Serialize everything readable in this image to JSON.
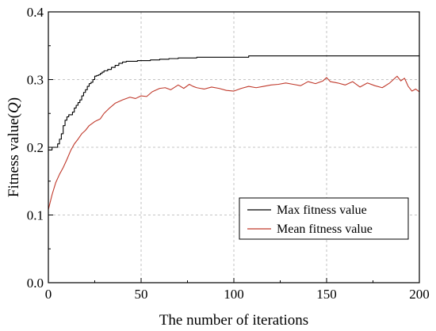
{
  "chart_data": {
    "type": "line",
    "xlabel": "The number of iterations",
    "ylabel_prefix": "Fitness value(",
    "ylabel_var": "Q",
    "ylabel_suffix": ")",
    "xlim": [
      0,
      200
    ],
    "ylim": [
      0.0,
      0.4
    ],
    "x_ticks": [
      0,
      50,
      100,
      150,
      200
    ],
    "x_tick_labels": [
      "0",
      "50",
      "100",
      "150",
      "200"
    ],
    "y_ticks": [
      0.0,
      0.1,
      0.2,
      0.3,
      0.4
    ],
    "y_tick_labels": [
      "0.0",
      "0.1",
      "0.2",
      "0.3",
      "0.4"
    ],
    "grid": true,
    "legend_position": "lower-right",
    "series": [
      {
        "name": "Max fitness value",
        "color": "#000000",
        "x": [
          0,
          1,
          2,
          3,
          4,
          5,
          6,
          7,
          8,
          9,
          10,
          11,
          12,
          13,
          14,
          15,
          16,
          17,
          18,
          19,
          20,
          21,
          22,
          23,
          24,
          25,
          26,
          27,
          28,
          29,
          30,
          32,
          34,
          36,
          38,
          40,
          42,
          45,
          48,
          50,
          55,
          60,
          65,
          70,
          80,
          90,
          100,
          108,
          110,
          120,
          150,
          180,
          200
        ],
        "y": [
          0.196,
          0.196,
          0.2,
          0.2,
          0.2,
          0.205,
          0.212,
          0.22,
          0.232,
          0.24,
          0.245,
          0.248,
          0.248,
          0.252,
          0.258,
          0.262,
          0.266,
          0.27,
          0.276,
          0.281,
          0.285,
          0.29,
          0.294,
          0.296,
          0.3,
          0.305,
          0.306,
          0.307,
          0.309,
          0.311,
          0.313,
          0.315,
          0.318,
          0.321,
          0.324,
          0.326,
          0.327,
          0.327,
          0.328,
          0.328,
          0.329,
          0.33,
          0.331,
          0.332,
          0.333,
          0.333,
          0.333,
          0.335,
          0.335,
          0.335,
          0.335,
          0.335,
          0.335
        ]
      },
      {
        "name": "Mean fitness value",
        "color": "#c0392b",
        "x": [
          0,
          2,
          4,
          6,
          8,
          10,
          12,
          14,
          16,
          18,
          20,
          22,
          25,
          28,
          30,
          33,
          36,
          40,
          44,
          47,
          50,
          53,
          56,
          60,
          63,
          66,
          70,
          73,
          76,
          78,
          80,
          84,
          88,
          92,
          96,
          100,
          104,
          108,
          112,
          116,
          120,
          124,
          128,
          132,
          136,
          140,
          144,
          148,
          150,
          152,
          156,
          160,
          164,
          168,
          172,
          176,
          180,
          184,
          186,
          188,
          190,
          192,
          194,
          196,
          198,
          200
        ],
        "y": [
          0.108,
          0.13,
          0.148,
          0.16,
          0.17,
          0.182,
          0.195,
          0.205,
          0.212,
          0.22,
          0.225,
          0.232,
          0.238,
          0.242,
          0.25,
          0.258,
          0.265,
          0.27,
          0.274,
          0.272,
          0.276,
          0.275,
          0.282,
          0.287,
          0.288,
          0.285,
          0.292,
          0.287,
          0.293,
          0.29,
          0.288,
          0.286,
          0.289,
          0.287,
          0.284,
          0.283,
          0.287,
          0.29,
          0.288,
          0.29,
          0.292,
          0.293,
          0.295,
          0.293,
          0.291,
          0.297,
          0.294,
          0.298,
          0.303,
          0.297,
          0.295,
          0.292,
          0.297,
          0.289,
          0.295,
          0.291,
          0.288,
          0.295,
          0.3,
          0.305,
          0.298,
          0.302,
          0.29,
          0.283,
          0.286,
          0.282
        ]
      }
    ]
  }
}
